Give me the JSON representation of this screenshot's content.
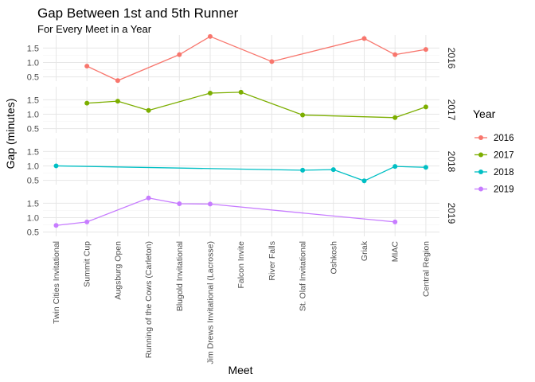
{
  "chart_data": {
    "type": "line",
    "title": "Gap Between 1st and 5th Runner",
    "subtitle": "For Every Meet in a Year",
    "xlabel": "Meet",
    "ylabel": "Gap (minutes)",
    "categories": [
      "Twin Cities Invitational",
      "Summit Cup",
      "Augsburg Open",
      "Running of the Cows (Carleton)",
      "Blugold Invitational",
      "Jim Drews Invitational (Lacrosse)",
      "Falcon Invite",
      "River Falls",
      "St. Olaf Invitational",
      "Oshkosh",
      "Griak",
      "MIAC",
      "Central Region"
    ],
    "ylim": [
      0.35,
      1.95
    ],
    "yticks": [
      0.5,
      1.0,
      1.5
    ],
    "ytick_labels": [
      "0.5",
      "1.0",
      "1.5"
    ],
    "legend": {
      "title": "Year",
      "position": "right"
    },
    "facets": "rows by series",
    "grid": true,
    "series": [
      {
        "name": "2016",
        "color": "#F8766D",
        "points": [
          {
            "x": "Summit Cup",
            "y": 0.87
          },
          {
            "x": "Augsburg Open",
            "y": 0.37
          },
          {
            "x": "Blugold Invitational",
            "y": 1.27
          },
          {
            "x": "Jim Drews Invitational (Lacrosse)",
            "y": 1.9
          },
          {
            "x": "River Falls",
            "y": 1.03
          },
          {
            "x": "Griak",
            "y": 1.83
          },
          {
            "x": "MIAC",
            "y": 1.27
          },
          {
            "x": "Central Region",
            "y": 1.45
          }
        ]
      },
      {
        "name": "2017",
        "color": "#7CAE00",
        "points": [
          {
            "x": "Summit Cup",
            "y": 1.38
          },
          {
            "x": "Augsburg Open",
            "y": 1.45
          },
          {
            "x": "Running of the Cows (Carleton)",
            "y": 1.13
          },
          {
            "x": "Jim Drews Invitational (Lacrosse)",
            "y": 1.73
          },
          {
            "x": "Falcon Invite",
            "y": 1.76
          },
          {
            "x": "St. Olaf Invitational",
            "y": 0.97
          },
          {
            "x": "MIAC",
            "y": 0.88
          },
          {
            "x": "Central Region",
            "y": 1.25
          }
        ]
      },
      {
        "name": "2018",
        "color": "#00BFC4",
        "points": [
          {
            "x": "Twin Cities Invitational",
            "y": 1.0
          },
          {
            "x": "St. Olaf Invitational",
            "y": 0.85
          },
          {
            "x": "Oshkosh",
            "y": 0.87
          },
          {
            "x": "Griak",
            "y": 0.48
          },
          {
            "x": "MIAC",
            "y": 0.98
          },
          {
            "x": "Central Region",
            "y": 0.95
          }
        ]
      },
      {
        "name": "2019",
        "color": "#C77CFF",
        "points": [
          {
            "x": "Twin Cities Invitational",
            "y": 0.73
          },
          {
            "x": "Summit Cup",
            "y": 0.85
          },
          {
            "x": "Running of the Cows (Carleton)",
            "y": 1.68
          },
          {
            "x": "Blugold Invitational",
            "y": 1.48
          },
          {
            "x": "Jim Drews Invitational (Lacrosse)",
            "y": 1.47
          },
          {
            "x": "MIAC",
            "y": 0.85
          }
        ]
      }
    ]
  }
}
